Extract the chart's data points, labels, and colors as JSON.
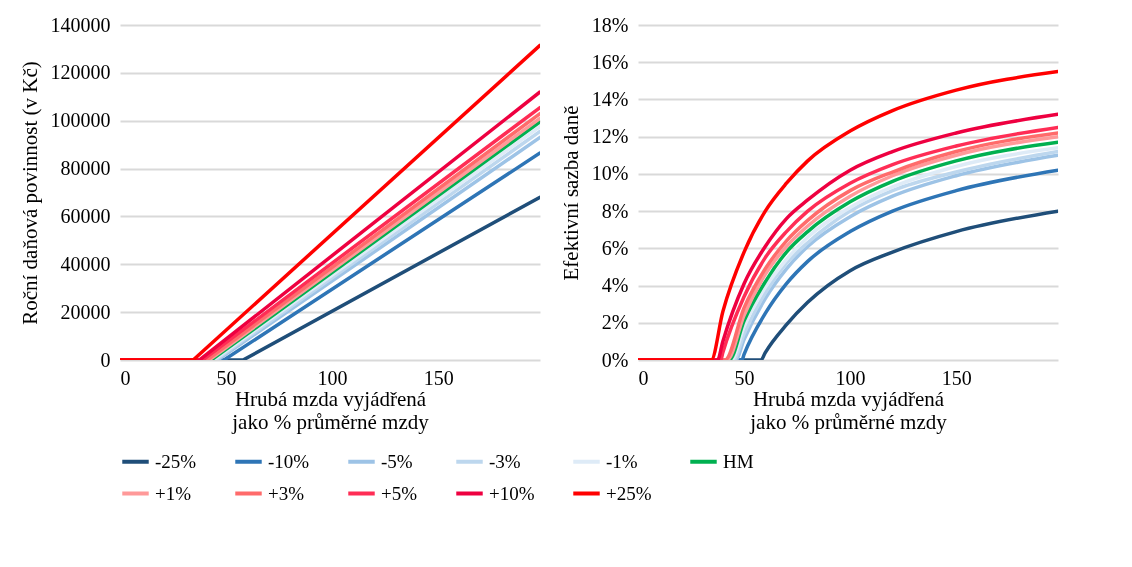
{
  "chart_data": [
    {
      "type": "line",
      "xlabel": "Hrubá mzda vyjádřená jako % průměrné mzdy",
      "ylabel": "Roční daňová povinnost (v Kč)",
      "xlim": [
        0,
        198
      ],
      "xticks": [
        0,
        50,
        100,
        150
      ],
      "ylim": [
        0,
        140000
      ],
      "yticks": [
        0,
        20000,
        40000,
        60000,
        80000,
        100000,
        120000,
        140000
      ],
      "grid": "y",
      "legend": "bottom",
      "marker": "none",
      "line_style": "solid",
      "series": [
        {
          "name": "-25%",
          "color": "#1f4e79",
          "x": [
            0,
            58,
            198
          ],
          "values": [
            0,
            0,
            68000
          ]
        },
        {
          "name": "-10%",
          "color": "#2e75b6",
          "x": [
            0,
            49,
            198
          ],
          "values": [
            0,
            0,
            86500
          ]
        },
        {
          "name": "-5%",
          "color": "#9dc3e6",
          "x": [
            0,
            46,
            198
          ],
          "values": [
            0,
            0,
            93000
          ]
        },
        {
          "name": "-3%",
          "color": "#bdd7ee",
          "x": [
            0,
            45,
            198
          ],
          "values": [
            0,
            0,
            95500
          ]
        },
        {
          "name": "-1%",
          "color": "#deebf7",
          "x": [
            0,
            44,
            198
          ],
          "values": [
            0,
            0,
            97500
          ]
        },
        {
          "name": "HM",
          "color": "#00b050",
          "x": [
            0,
            43,
            198
          ],
          "values": [
            0,
            0,
            99500
          ]
        },
        {
          "name": "+1%",
          "color": "#ff9999",
          "x": [
            0,
            42,
            198
          ],
          "values": [
            0,
            0,
            101000
          ]
        },
        {
          "name": "+3%",
          "color": "#ff6b6b",
          "x": [
            0,
            41,
            198
          ],
          "values": [
            0,
            0,
            103000
          ]
        },
        {
          "name": "+5%",
          "color": "#ff2d55",
          "x": [
            0,
            39,
            198
          ],
          "values": [
            0,
            0,
            105500
          ]
        },
        {
          "name": "+10%",
          "color": "#ee0040",
          "x": [
            0,
            37.5,
            198
          ],
          "values": [
            0,
            0,
            112000
          ]
        },
        {
          "name": "+25%",
          "color": "#ff0000",
          "x": [
            0,
            34.5,
            198
          ],
          "values": [
            0,
            0,
            131500
          ]
        }
      ]
    },
    {
      "type": "line",
      "xlabel": "Hrubá mzda vyjádřená jako % průměrné mzdy",
      "ylabel": "Efektivní sazba daně",
      "xlim": [
        0,
        198
      ],
      "xticks": [
        0,
        50,
        100,
        150
      ],
      "ylim": [
        0,
        18
      ],
      "yticks": [
        {
          "value": 0,
          "label": "0%"
        },
        {
          "value": 2,
          "label": "2%"
        },
        {
          "value": 4,
          "label": "4%"
        },
        {
          "value": 6,
          "label": "6%"
        },
        {
          "value": 8,
          "label": "8%"
        },
        {
          "value": 10,
          "label": "10%"
        },
        {
          "value": 12,
          "label": "12%"
        },
        {
          "value": 14,
          "label": "14%"
        },
        {
          "value": 16,
          "label": "16%"
        },
        {
          "value": 18,
          "label": "18%"
        }
      ],
      "grid": "y",
      "legend": "bottom",
      "marker": "none",
      "line_style": "solid",
      "series": [
        {
          "name": "-25%",
          "color": "#1f4e79",
          "x": [
            0,
            58,
            60,
            70,
            80,
            100,
            120,
            150,
            198
          ],
          "values": [
            0,
            0,
            0.4,
            1.9,
            3.1,
            4.8,
            5.8,
            6.9,
            8.0
          ]
        },
        {
          "name": "-10%",
          "color": "#2e75b6",
          "x": [
            0,
            49,
            50,
            60,
            70,
            80,
            100,
            120,
            150,
            198
          ],
          "values": [
            0,
            0,
            0.3,
            2.5,
            4.1,
            5.3,
            6.9,
            8.0,
            9.1,
            10.2
          ]
        },
        {
          "name": "-5%",
          "color": "#9dc3e6",
          "x": [
            0,
            46,
            50,
            60,
            70,
            80,
            100,
            120,
            150,
            198
          ],
          "values": [
            0,
            0,
            1.1,
            3.3,
            4.9,
            6.1,
            7.7,
            8.8,
            9.9,
            11.0
          ]
        },
        {
          "name": "-3%",
          "color": "#bdd7ee",
          "x": [
            0,
            45,
            50,
            60,
            70,
            80,
            100,
            120,
            150,
            198
          ],
          "values": [
            0,
            0,
            1.4,
            3.6,
            5.2,
            6.3,
            8.0,
            9.1,
            10.1,
            11.2
          ]
        },
        {
          "name": "-1%",
          "color": "#deebf7",
          "x": [
            0,
            44,
            50,
            60,
            70,
            80,
            100,
            120,
            150,
            198
          ],
          "values": [
            0,
            0,
            1.8,
            3.9,
            5.4,
            6.6,
            8.2,
            9.3,
            10.4,
            11.4
          ]
        },
        {
          "name": "HM",
          "color": "#00b050",
          "x": [
            0,
            43,
            50,
            60,
            70,
            80,
            100,
            120,
            150,
            198
          ],
          "values": [
            0,
            0,
            2.1,
            4.2,
            5.8,
            6.9,
            8.5,
            9.6,
            10.7,
            11.7
          ]
        },
        {
          "name": "+1%",
          "color": "#ff9999",
          "x": [
            0,
            42,
            50,
            60,
            70,
            80,
            100,
            120,
            150,
            198
          ],
          "values": [
            0,
            0,
            2.4,
            4.6,
            6.1,
            7.2,
            8.8,
            9.9,
            11.0,
            12.0
          ]
        },
        {
          "name": "+3%",
          "color": "#ff6b6b",
          "x": [
            0,
            41,
            50,
            60,
            70,
            80,
            100,
            120,
            150,
            198
          ],
          "values": [
            0,
            0,
            2.8,
            4.9,
            6.4,
            7.5,
            9.1,
            10.1,
            11.2,
            12.2
          ]
        },
        {
          "name": "+5%",
          "color": "#ff2d55",
          "x": [
            0,
            39,
            40,
            50,
            60,
            70,
            80,
            100,
            120,
            150,
            198
          ],
          "values": [
            0,
            0,
            0.4,
            3.4,
            5.5,
            6.9,
            8.0,
            9.5,
            10.5,
            11.5,
            12.5
          ]
        },
        {
          "name": "+10%",
          "color": "#ee0040",
          "x": [
            0,
            37.5,
            40,
            50,
            60,
            70,
            80,
            100,
            120,
            150,
            198
          ],
          "values": [
            0,
            0,
            1.0,
            4.1,
            6.1,
            7.6,
            8.6,
            10.2,
            11.2,
            12.2,
            13.2
          ]
        },
        {
          "name": "+25%",
          "color": "#ff0000",
          "x": [
            0,
            34.5,
            40,
            50,
            60,
            70,
            80,
            100,
            120,
            150,
            198
          ],
          "values": [
            0,
            0,
            2.6,
            5.8,
            8.0,
            9.5,
            10.7,
            12.3,
            13.4,
            14.5,
            15.5
          ]
        }
      ]
    }
  ]
}
